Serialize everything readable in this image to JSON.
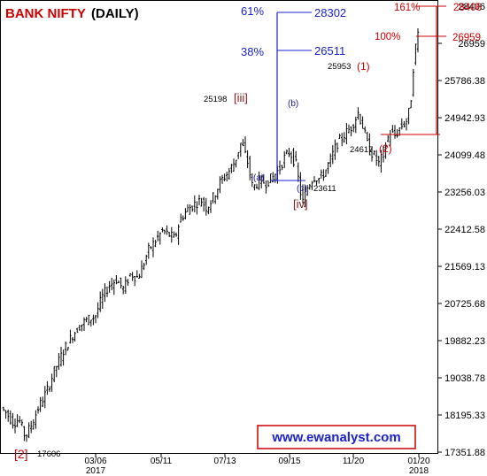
{
  "chart_data": {
    "type": "candlestick",
    "title_primary": "BANK NIFTY",
    "title_secondary": "(DAILY)",
    "yticks": [
      "28406",
      "26959",
      "25786.38",
      "24942.93",
      "24099.48",
      "23256.03",
      "22412.58",
      "21569.13",
      "20725.68",
      "19882.23",
      "19038.78",
      "18195.33",
      "17351.88"
    ],
    "xticks": [
      {
        "label": "03/06",
        "sub": "2017"
      },
      {
        "label": "05/11",
        "sub": ""
      },
      {
        "label": "07/13",
        "sub": ""
      },
      {
        "label": "09/15",
        "sub": ""
      },
      {
        "label": "11/20",
        "sub": ""
      },
      {
        "label": "01/20",
        "sub": "2018"
      }
    ],
    "ylim": [
      17200,
      28700
    ],
    "wave_labels": [
      {
        "text": "[2]",
        "price": "17606",
        "style": "red"
      },
      {
        "text": "[iii]",
        "price": "25198",
        "style": "brown"
      },
      {
        "text": "(a)",
        "price": "",
        "style": "blue"
      },
      {
        "text": "(b)",
        "price": "",
        "style": "blue"
      },
      {
        "text": "(c)",
        "price": "23611",
        "style": "blue"
      },
      {
        "text": "[iv]",
        "price": "",
        "style": "brown"
      },
      {
        "text": "(1)",
        "price": "25953",
        "style": "red"
      },
      {
        "text": "(2)",
        "price": "24617",
        "style": "red"
      }
    ],
    "fib_blue": [
      {
        "pct": "61%",
        "value": "28302"
      },
      {
        "pct": "38%",
        "value": "26511"
      }
    ],
    "fib_red": [
      {
        "pct": "161%",
        "value": "28406"
      },
      {
        "pct": "100%",
        "value": "26959"
      }
    ],
    "watermark": "www.ewanalyst.com",
    "colors": {
      "red": "#cc0000",
      "blue": "#1a22cc",
      "brown": "#8b1a1a",
      "ink": "#000000"
    }
  }
}
